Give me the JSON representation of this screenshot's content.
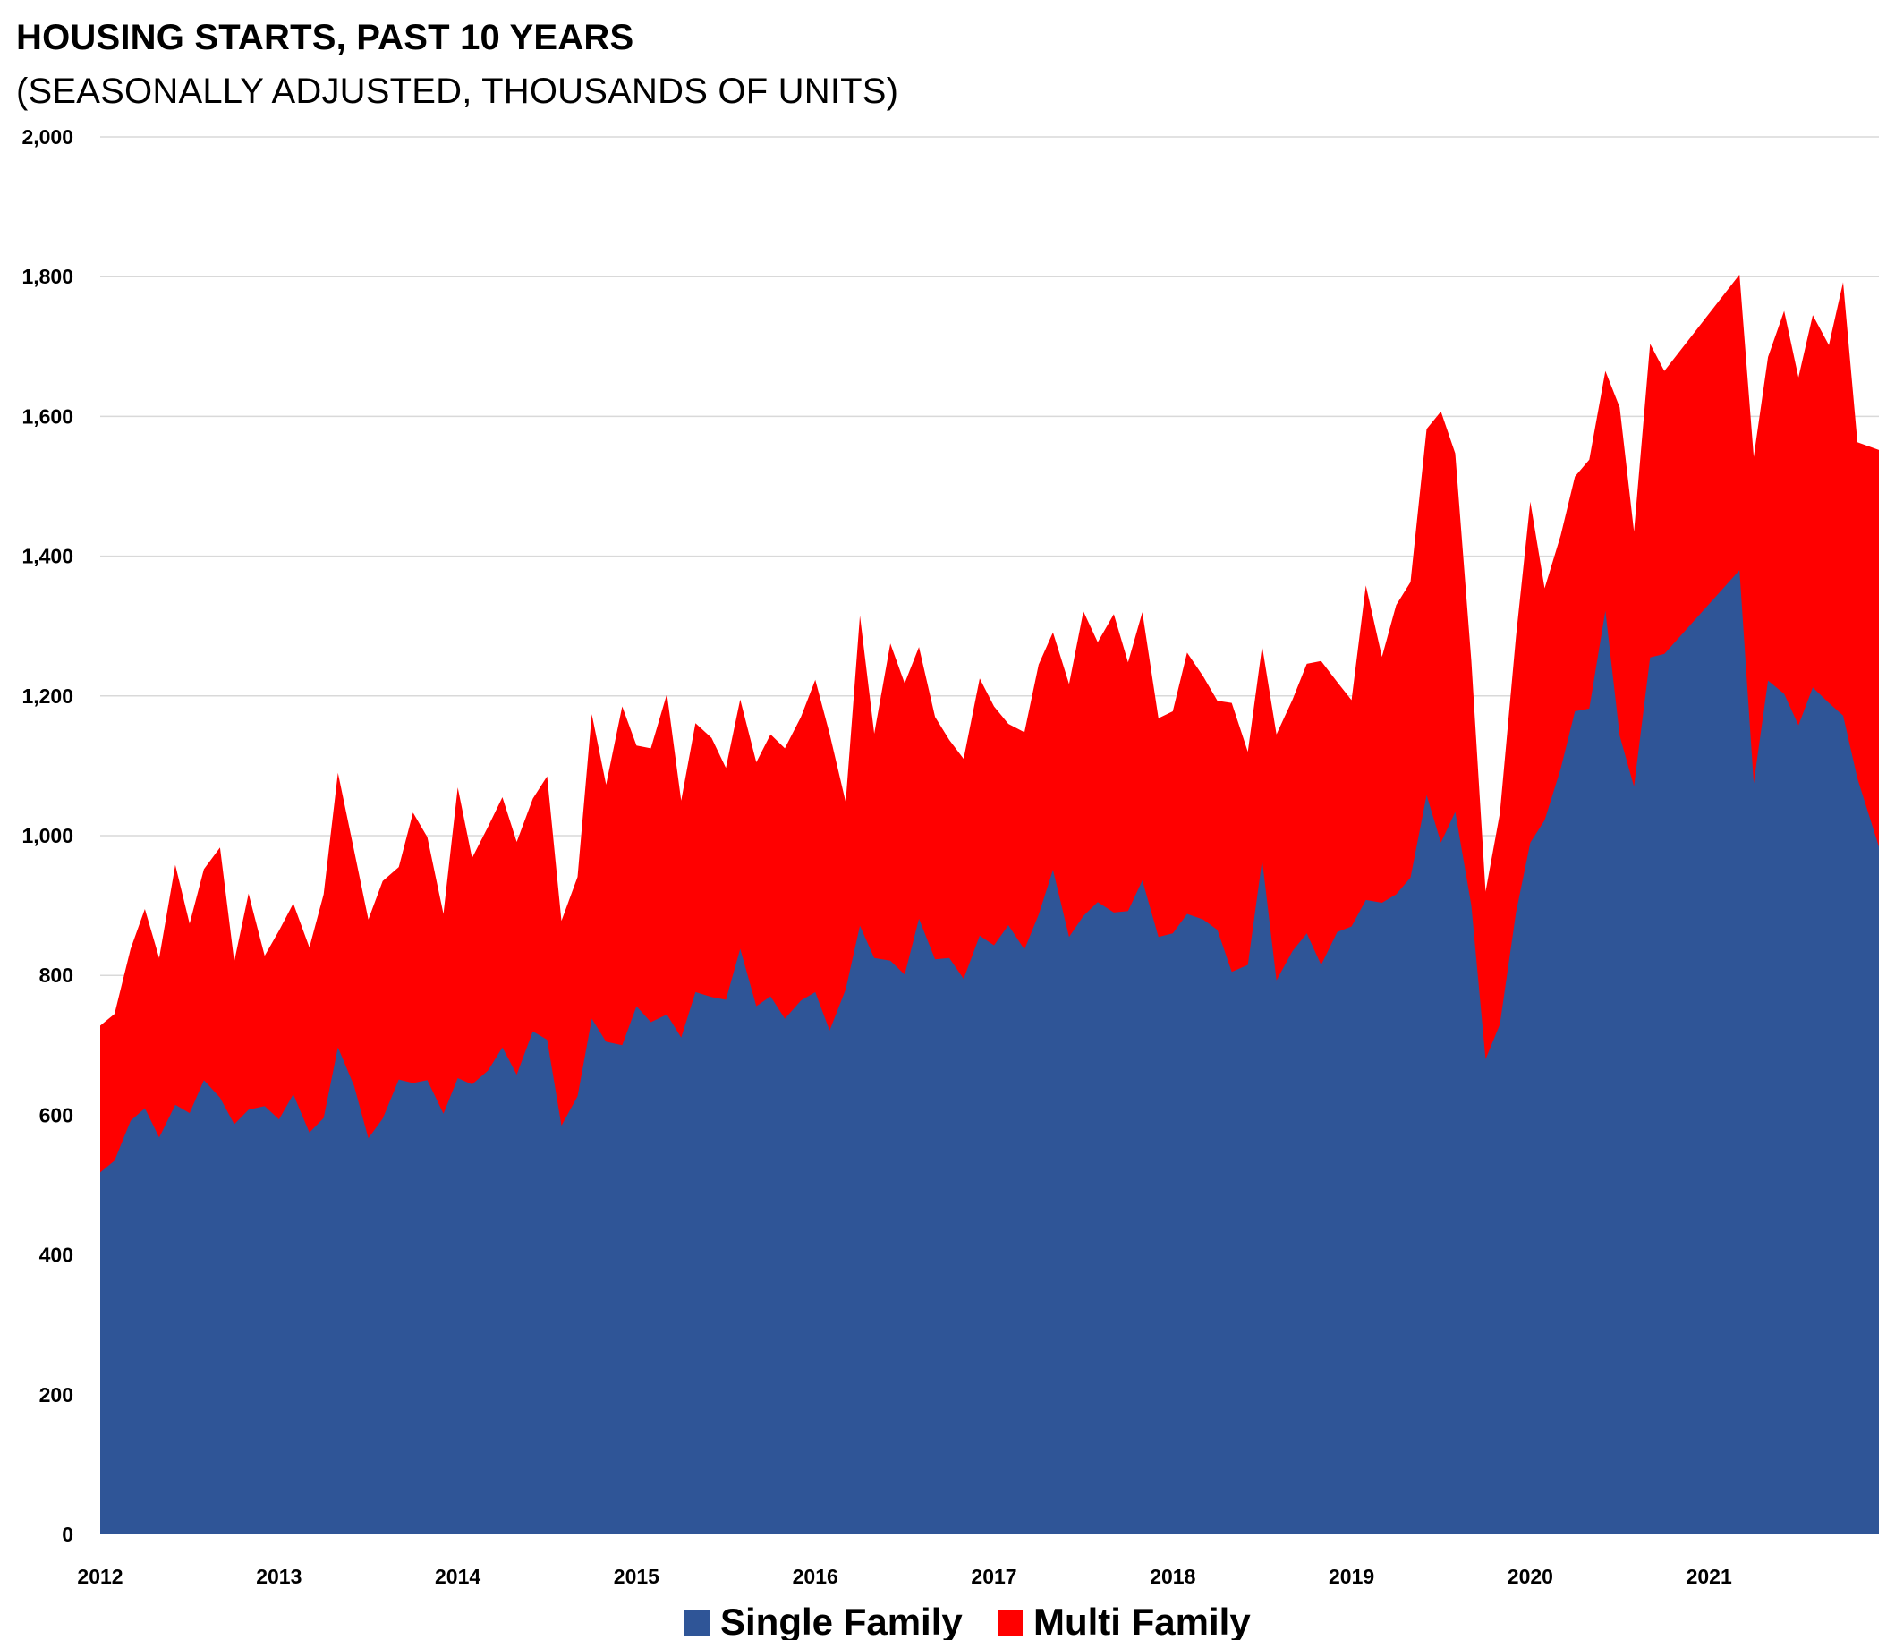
{
  "chart_data": {
    "type": "area",
    "stacked": true,
    "title": "HOUSING STARTS, PAST 10 YEARS",
    "subtitle": "(SEASONALLY ADJUSTED, THOUSANDS OF UNITS)",
    "xlabel": "",
    "ylabel": "",
    "ylim": [
      0,
      2000
    ],
    "yticks": [
      "0",
      "200",
      "400",
      "600",
      "800",
      "1,000",
      "1,200",
      "1,400",
      "1,600",
      "1,800",
      "2,000"
    ],
    "yticks_values": [
      0,
      200,
      400,
      600,
      800,
      1000,
      1200,
      1400,
      1600,
      1800,
      2000
    ],
    "xlim": [
      2012,
      2021.95
    ],
    "xticks": [
      "2012",
      "2013",
      "2014",
      "2015",
      "2016",
      "2017",
      "2018",
      "2019",
      "2020",
      "2021"
    ],
    "xticks_values": [
      2012,
      2013,
      2014,
      2015,
      2016,
      2017,
      2018,
      2019,
      2020,
      2021
    ],
    "grid": true,
    "legend_position": "bottom",
    "series": [
      {
        "name": "Single Family",
        "color": "#2F5597",
        "points": [
          [
            2012.0,
            518
          ],
          [
            2012.08,
            535
          ],
          [
            2012.17,
            592
          ],
          [
            2012.25,
            610
          ],
          [
            2012.33,
            568
          ],
          [
            2012.42,
            615
          ],
          [
            2012.5,
            603
          ],
          [
            2012.58,
            650
          ],
          [
            2012.67,
            625
          ],
          [
            2012.75,
            587
          ],
          [
            2012.83,
            608
          ],
          [
            2012.92,
            613
          ],
          [
            2013.0,
            594
          ],
          [
            2013.08,
            630
          ],
          [
            2013.17,
            575
          ],
          [
            2013.25,
            596
          ],
          [
            2013.33,
            697
          ],
          [
            2013.42,
            642
          ],
          [
            2013.5,
            567
          ],
          [
            2013.58,
            595
          ],
          [
            2013.67,
            651
          ],
          [
            2013.75,
            646
          ],
          [
            2013.83,
            650
          ],
          [
            2013.92,
            602
          ],
          [
            2014.0,
            653
          ],
          [
            2014.08,
            644
          ],
          [
            2014.17,
            664
          ],
          [
            2014.25,
            697
          ],
          [
            2014.33,
            658
          ],
          [
            2014.42,
            720
          ],
          [
            2014.5,
            708
          ],
          [
            2014.58,
            585
          ],
          [
            2014.67,
            627
          ],
          [
            2014.75,
            738
          ],
          [
            2014.83,
            705
          ],
          [
            2014.92,
            700
          ],
          [
            2015.0,
            756
          ],
          [
            2015.08,
            733
          ],
          [
            2015.17,
            744
          ],
          [
            2015.25,
            711
          ],
          [
            2015.33,
            776
          ],
          [
            2015.42,
            769
          ],
          [
            2015.5,
            765
          ],
          [
            2015.58,
            838
          ],
          [
            2015.67,
            756
          ],
          [
            2015.75,
            770
          ],
          [
            2015.83,
            738
          ],
          [
            2015.92,
            764
          ],
          [
            2016.0,
            776
          ],
          [
            2016.08,
            721
          ],
          [
            2016.17,
            780
          ],
          [
            2016.25,
            871
          ],
          [
            2016.33,
            825
          ],
          [
            2016.42,
            821
          ],
          [
            2016.5,
            801
          ],
          [
            2016.58,
            881
          ],
          [
            2016.67,
            823
          ],
          [
            2016.75,
            825
          ],
          [
            2016.83,
            795
          ],
          [
            2016.92,
            857
          ],
          [
            2017.0,
            843
          ],
          [
            2017.08,
            872
          ],
          [
            2017.17,
            837
          ],
          [
            2017.25,
            887
          ],
          [
            2017.33,
            951
          ],
          [
            2017.42,
            855
          ],
          [
            2017.5,
            885
          ],
          [
            2017.58,
            905
          ],
          [
            2017.67,
            890
          ],
          [
            2017.75,
            892
          ],
          [
            2017.83,
            936
          ],
          [
            2017.92,
            855
          ],
          [
            2018.0,
            860
          ],
          [
            2018.08,
            888
          ],
          [
            2018.17,
            880
          ],
          [
            2018.25,
            865
          ],
          [
            2018.33,
            805
          ],
          [
            2018.42,
            815
          ],
          [
            2018.5,
            965
          ],
          [
            2018.58,
            793
          ],
          [
            2018.67,
            835
          ],
          [
            2018.75,
            860
          ],
          [
            2018.83,
            815
          ],
          [
            2018.92,
            862
          ],
          [
            2019.0,
            870
          ],
          [
            2019.08,
            908
          ],
          [
            2019.17,
            904
          ],
          [
            2019.25,
            916
          ],
          [
            2019.33,
            940
          ],
          [
            2019.42,
            1058
          ],
          [
            2019.5,
            990
          ],
          [
            2019.58,
            1034
          ],
          [
            2019.67,
            900
          ],
          [
            2019.75,
            680
          ],
          [
            2019.83,
            730
          ],
          [
            2019.92,
            890
          ],
          [
            2020.0,
            990
          ],
          [
            2020.08,
            1022
          ],
          [
            2020.17,
            1096
          ],
          [
            2020.25,
            1178
          ],
          [
            2020.33,
            1182
          ],
          [
            2020.42,
            1322
          ],
          [
            2020.5,
            1143
          ],
          [
            2020.58,
            1070
          ],
          [
            2020.67,
            1255
          ],
          [
            2020.75,
            1260
          ],
          [
            2021.17,
            1380
          ],
          [
            2021.25,
            1075
          ],
          [
            2021.33,
            1222
          ],
          [
            2021.42,
            1203
          ],
          [
            2021.5,
            1158
          ],
          [
            2021.58,
            1212
          ],
          [
            2021.67,
            1190
          ],
          [
            2021.75,
            1172
          ],
          [
            2021.83,
            1082
          ],
          [
            2021.95,
            984
          ]
        ]
      },
      {
        "name": "Multi Family",
        "color": "#FF0000",
        "totals": [
          [
            2012.0,
            728
          ],
          [
            2012.08,
            745
          ],
          [
            2012.17,
            838
          ],
          [
            2012.25,
            895
          ],
          [
            2012.33,
            825
          ],
          [
            2012.42,
            958
          ],
          [
            2012.5,
            874
          ],
          [
            2012.58,
            952
          ],
          [
            2012.67,
            983
          ],
          [
            2012.75,
            820
          ],
          [
            2012.83,
            917
          ],
          [
            2012.92,
            828
          ],
          [
            2013.0,
            864
          ],
          [
            2013.08,
            903
          ],
          [
            2013.17,
            840
          ],
          [
            2013.25,
            916
          ],
          [
            2013.33,
            1090
          ],
          [
            2013.42,
            979
          ],
          [
            2013.5,
            880
          ],
          [
            2013.58,
            935
          ],
          [
            2013.67,
            955
          ],
          [
            2013.75,
            1033
          ],
          [
            2013.83,
            998
          ],
          [
            2013.92,
            888
          ],
          [
            2014.0,
            1069
          ],
          [
            2014.08,
            968
          ],
          [
            2014.17,
            1013
          ],
          [
            2014.25,
            1055
          ],
          [
            2014.33,
            991
          ],
          [
            2014.42,
            1053
          ],
          [
            2014.5,
            1085
          ],
          [
            2014.58,
            878
          ],
          [
            2014.67,
            941
          ],
          [
            2014.75,
            1174
          ],
          [
            2014.83,
            1073
          ],
          [
            2014.92,
            1185
          ],
          [
            2015.0,
            1129
          ],
          [
            2015.08,
            1125
          ],
          [
            2015.17,
            1203
          ],
          [
            2015.25,
            1050
          ],
          [
            2015.33,
            1161
          ],
          [
            2015.42,
            1140
          ],
          [
            2015.5,
            1097
          ],
          [
            2015.58,
            1195
          ],
          [
            2015.67,
            1105
          ],
          [
            2015.75,
            1145
          ],
          [
            2015.83,
            1125
          ],
          [
            2015.92,
            1170
          ],
          [
            2016.0,
            1223
          ],
          [
            2016.08,
            1146
          ],
          [
            2016.17,
            1048
          ],
          [
            2016.25,
            1315
          ],
          [
            2016.33,
            1146
          ],
          [
            2016.42,
            1275
          ],
          [
            2016.5,
            1218
          ],
          [
            2016.58,
            1270
          ],
          [
            2016.67,
            1170
          ],
          [
            2016.75,
            1137
          ],
          [
            2016.83,
            1110
          ],
          [
            2016.92,
            1225
          ],
          [
            2017.0,
            1185
          ],
          [
            2017.08,
            1160
          ],
          [
            2017.17,
            1148
          ],
          [
            2017.25,
            1245
          ],
          [
            2017.33,
            1291
          ],
          [
            2017.42,
            1217
          ],
          [
            2017.5,
            1321
          ],
          [
            2017.58,
            1277
          ],
          [
            2017.67,
            1317
          ],
          [
            2017.75,
            1248
          ],
          [
            2017.83,
            1320
          ],
          [
            2017.92,
            1168
          ],
          [
            2018.0,
            1178
          ],
          [
            2018.08,
            1262
          ],
          [
            2018.17,
            1228
          ],
          [
            2018.25,
            1193
          ],
          [
            2018.33,
            1190
          ],
          [
            2018.42,
            1120
          ],
          [
            2018.5,
            1271
          ],
          [
            2018.58,
            1145
          ],
          [
            2018.67,
            1195
          ],
          [
            2018.75,
            1246
          ],
          [
            2018.83,
            1250
          ],
          [
            2018.92,
            1220
          ],
          [
            2019.0,
            1194
          ],
          [
            2019.08,
            1358
          ],
          [
            2019.17,
            1256
          ],
          [
            2019.25,
            1330
          ],
          [
            2019.33,
            1363
          ],
          [
            2019.42,
            1582
          ],
          [
            2019.5,
            1607
          ],
          [
            2019.58,
            1547
          ],
          [
            2019.67,
            1250
          ],
          [
            2019.75,
            920
          ],
          [
            2019.83,
            1032
          ],
          [
            2019.92,
            1285
          ],
          [
            2020.0,
            1478
          ],
          [
            2020.08,
            1354
          ],
          [
            2020.17,
            1430
          ],
          [
            2020.25,
            1514
          ],
          [
            2020.33,
            1538
          ],
          [
            2020.42,
            1665
          ],
          [
            2020.5,
            1613
          ],
          [
            2020.58,
            1435
          ],
          [
            2020.67,
            1704
          ],
          [
            2020.75,
            1665
          ],
          [
            2021.17,
            1803
          ],
          [
            2021.25,
            1542
          ],
          [
            2021.33,
            1685
          ],
          [
            2021.42,
            1751
          ],
          [
            2021.5,
            1656
          ],
          [
            2021.58,
            1745
          ],
          [
            2021.67,
            1702
          ],
          [
            2021.75,
            1792
          ],
          [
            2021.83,
            1563
          ],
          [
            2021.95,
            1552
          ]
        ]
      }
    ]
  }
}
